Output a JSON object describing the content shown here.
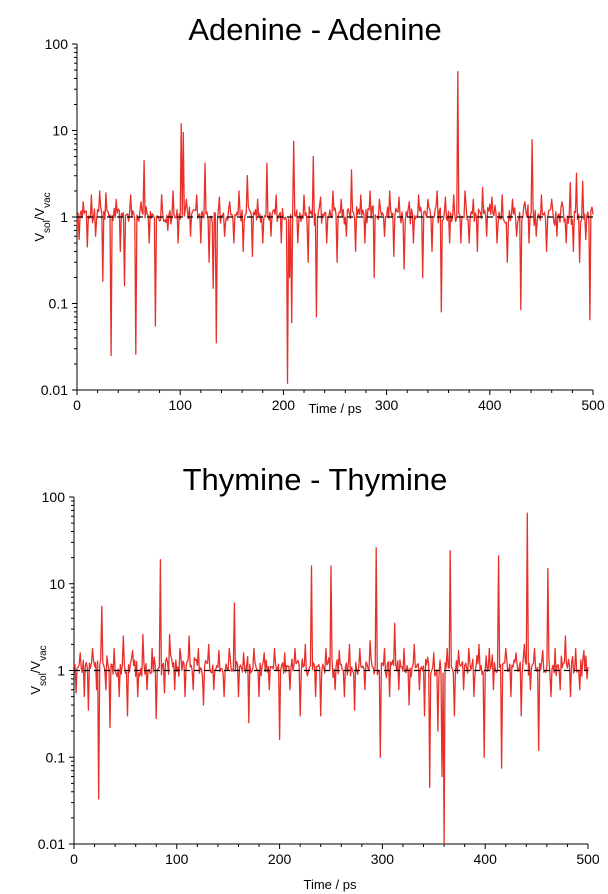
{
  "chart_data": [
    {
      "type": "line",
      "title": "Adenine - Adenine",
      "xlabel": "Time / ps",
      "ylabel": "V",
      "ylabel_sub1": "sol",
      "ylabel_slash": "/V",
      "ylabel_sub2": "vac",
      "xlim": [
        0,
        500
      ],
      "ylim": [
        0.01,
        100
      ],
      "yscale": "log",
      "x_ticks": [
        0,
        100,
        200,
        300,
        400,
        500
      ],
      "x_tick_labels": [
        "0",
        "100",
        "200",
        "300",
        "400",
        "500"
      ],
      "y_ticks": [
        0.01,
        0.1,
        1,
        10,
        100
      ],
      "y_tick_labels": [
        "0.01",
        "0.1",
        "1",
        "10",
        "100"
      ],
      "reference_line": {
        "y": 1,
        "style": "dashed",
        "color": "#000000"
      },
      "line_color": "#e8302a",
      "grid": false,
      "base_y": 1.05,
      "sample_step": 1,
      "noise_amplitude_log10": 0.13,
      "spikes": [
        {
          "x": 2,
          "y": 0.55
        },
        {
          "x": 6,
          "y": 1.5
        },
        {
          "x": 10,
          "y": 0.45
        },
        {
          "x": 14,
          "y": 1.8
        },
        {
          "x": 18,
          "y": 0.6
        },
        {
          "x": 22,
          "y": 2.0
        },
        {
          "x": 25,
          "y": 0.18
        },
        {
          "x": 28,
          "y": 1.9
        },
        {
          "x": 33,
          "y": 0.025
        },
        {
          "x": 38,
          "y": 1.6
        },
        {
          "x": 42,
          "y": 0.4
        },
        {
          "x": 46,
          "y": 0.16
        },
        {
          "x": 52,
          "y": 1.8
        },
        {
          "x": 57,
          "y": 0.026
        },
        {
          "x": 62,
          "y": 1.5
        },
        {
          "x": 65,
          "y": 4.5
        },
        {
          "x": 70,
          "y": 0.5
        },
        {
          "x": 76,
          "y": 0.055
        },
        {
          "x": 82,
          "y": 1.8
        },
        {
          "x": 88,
          "y": 0.7
        },
        {
          "x": 93,
          "y": 2.0
        },
        {
          "x": 98,
          "y": 0.5
        },
        {
          "x": 101,
          "y": 12.0
        },
        {
          "x": 103,
          "y": 9.5
        },
        {
          "x": 106,
          "y": 1.6
        },
        {
          "x": 110,
          "y": 0.6
        },
        {
          "x": 116,
          "y": 1.8
        },
        {
          "x": 120,
          "y": 0.5
        },
        {
          "x": 124,
          "y": 4.2
        },
        {
          "x": 128,
          "y": 0.3
        },
        {
          "x": 132,
          "y": 0.15
        },
        {
          "x": 135,
          "y": 0.035
        },
        {
          "x": 138,
          "y": 1.7
        },
        {
          "x": 143,
          "y": 0.6
        },
        {
          "x": 148,
          "y": 1.5
        },
        {
          "x": 152,
          "y": 0.5
        },
        {
          "x": 157,
          "y": 2.0
        },
        {
          "x": 161,
          "y": 0.4
        },
        {
          "x": 165,
          "y": 3.0
        },
        {
          "x": 170,
          "y": 0.35
        },
        {
          "x": 175,
          "y": 1.6
        },
        {
          "x": 180,
          "y": 0.5
        },
        {
          "x": 184,
          "y": 4.2
        },
        {
          "x": 188,
          "y": 0.6
        },
        {
          "x": 193,
          "y": 1.8
        },
        {
          "x": 198,
          "y": 0.5
        },
        {
          "x": 204,
          "y": 0.012
        },
        {
          "x": 206,
          "y": 0.2
        },
        {
          "x": 208,
          "y": 0.06
        },
        {
          "x": 210,
          "y": 7.5
        },
        {
          "x": 214,
          "y": 0.5
        },
        {
          "x": 220,
          "y": 1.8
        },
        {
          "x": 224,
          "y": 0.3
        },
        {
          "x": 229,
          "y": 5.0
        },
        {
          "x": 232,
          "y": 0.07
        },
        {
          "x": 236,
          "y": 1.7
        },
        {
          "x": 242,
          "y": 0.5
        },
        {
          "x": 248,
          "y": 2.0
        },
        {
          "x": 252,
          "y": 0.3
        },
        {
          "x": 256,
          "y": 1.6
        },
        {
          "x": 261,
          "y": 0.6
        },
        {
          "x": 266,
          "y": 3.5
        },
        {
          "x": 270,
          "y": 0.4
        },
        {
          "x": 275,
          "y": 1.8
        },
        {
          "x": 279,
          "y": 0.5
        },
        {
          "x": 284,
          "y": 2.0
        },
        {
          "x": 288,
          "y": 0.2
        },
        {
          "x": 293,
          "y": 1.6
        },
        {
          "x": 298,
          "y": 0.6
        },
        {
          "x": 303,
          "y": 2.0
        },
        {
          "x": 307,
          "y": 0.35
        },
        {
          "x": 312,
          "y": 1.7
        },
        {
          "x": 317,
          "y": 0.25
        },
        {
          "x": 322,
          "y": 1.5
        },
        {
          "x": 326,
          "y": 0.5
        },
        {
          "x": 331,
          "y": 1.8
        },
        {
          "x": 335,
          "y": 0.2
        },
        {
          "x": 340,
          "y": 1.6
        },
        {
          "x": 344,
          "y": 0.4
        },
        {
          "x": 349,
          "y": 2.0
        },
        {
          "x": 353,
          "y": 0.08
        },
        {
          "x": 357,
          "y": 1.7
        },
        {
          "x": 361,
          "y": 0.5
        },
        {
          "x": 365,
          "y": 1.8
        },
        {
          "x": 369,
          "y": 48.0
        },
        {
          "x": 372,
          "y": 0.5
        },
        {
          "x": 376,
          "y": 2.0
        },
        {
          "x": 380,
          "y": 0.5
        },
        {
          "x": 384,
          "y": 1.6
        },
        {
          "x": 388,
          "y": 0.4
        },
        {
          "x": 393,
          "y": 2.2
        },
        {
          "x": 397,
          "y": 0.6
        },
        {
          "x": 402,
          "y": 1.7
        },
        {
          "x": 407,
          "y": 0.5
        },
        {
          "x": 412,
          "y": 1.8
        },
        {
          "x": 417,
          "y": 0.3
        },
        {
          "x": 422,
          "y": 1.6
        },
        {
          "x": 426,
          "y": 0.6
        },
        {
          "x": 430,
          "y": 0.085
        },
        {
          "x": 434,
          "y": 1.5
        },
        {
          "x": 438,
          "y": 0.5
        },
        {
          "x": 441,
          "y": 7.8
        },
        {
          "x": 445,
          "y": 0.6
        },
        {
          "x": 450,
          "y": 1.8
        },
        {
          "x": 455,
          "y": 0.4
        },
        {
          "x": 460,
          "y": 1.6
        },
        {
          "x": 465,
          "y": 0.6
        },
        {
          "x": 470,
          "y": 1.5
        },
        {
          "x": 474,
          "y": 0.5
        },
        {
          "x": 478,
          "y": 2.5
        },
        {
          "x": 481,
          "y": 0.4
        },
        {
          "x": 484,
          "y": 3.2
        },
        {
          "x": 487,
          "y": 0.3
        },
        {
          "x": 490,
          "y": 2.6
        },
        {
          "x": 493,
          "y": 0.55
        },
        {
          "x": 497,
          "y": 0.065
        },
        {
          "x": 499,
          "y": 1.3
        }
      ]
    },
    {
      "type": "line",
      "title": "Thymine - Thymine",
      "xlabel": "Time / ps",
      "ylabel": "V",
      "ylabel_sub1": "sol",
      "ylabel_slash": "/V",
      "ylabel_sub2": "vac",
      "xlim": [
        0,
        500
      ],
      "ylim": [
        0.01,
        100
      ],
      "yscale": "log",
      "x_ticks": [
        0,
        100,
        200,
        300,
        400,
        500
      ],
      "x_tick_labels": [
        "0",
        "100",
        "200",
        "300",
        "400",
        "500"
      ],
      "y_ticks": [
        0.01,
        0.1,
        1,
        10,
        100
      ],
      "y_tick_labels": [
        "0.01",
        "0.1",
        "1",
        "10",
        "100"
      ],
      "reference_line": {
        "y": 1,
        "style": "dashed",
        "color": "#000000"
      },
      "line_color": "#e8302a",
      "grid": false,
      "base_y": 1.1,
      "sample_step": 1,
      "noise_amplitude_log10": 0.14,
      "spikes": [
        {
          "x": 2,
          "y": 0.55
        },
        {
          "x": 6,
          "y": 1.6
        },
        {
          "x": 10,
          "y": 0.5
        },
        {
          "x": 14,
          "y": 0.35
        },
        {
          "x": 18,
          "y": 1.8
        },
        {
          "x": 22,
          "y": 0.6
        },
        {
          "x": 24,
          "y": 0.033
        },
        {
          "x": 27,
          "y": 5.5
        },
        {
          "x": 31,
          "y": 0.6
        },
        {
          "x": 35,
          "y": 0.22
        },
        {
          "x": 39,
          "y": 1.8
        },
        {
          "x": 44,
          "y": 0.5
        },
        {
          "x": 48,
          "y": 2.5
        },
        {
          "x": 52,
          "y": 0.3
        },
        {
          "x": 57,
          "y": 1.7
        },
        {
          "x": 62,
          "y": 0.5
        },
        {
          "x": 67,
          "y": 2.6
        },
        {
          "x": 71,
          "y": 0.6
        },
        {
          "x": 76,
          "y": 1.8
        },
        {
          "x": 80,
          "y": 0.28
        },
        {
          "x": 84,
          "y": 19.0
        },
        {
          "x": 88,
          "y": 0.55
        },
        {
          "x": 93,
          "y": 2.6
        },
        {
          "x": 98,
          "y": 0.6
        },
        {
          "x": 103,
          "y": 1.8
        },
        {
          "x": 108,
          "y": 0.5
        },
        {
          "x": 112,
          "y": 2.5
        },
        {
          "x": 116,
          "y": 0.6
        },
        {
          "x": 121,
          "y": 1.8
        },
        {
          "x": 126,
          "y": 0.4
        },
        {
          "x": 131,
          "y": 2.0
        },
        {
          "x": 136,
          "y": 0.6
        },
        {
          "x": 141,
          "y": 1.7
        },
        {
          "x": 146,
          "y": 0.5
        },
        {
          "x": 151,
          "y": 1.8
        },
        {
          "x": 156,
          "y": 6.0
        },
        {
          "x": 160,
          "y": 0.5
        },
        {
          "x": 165,
          "y": 1.6
        },
        {
          "x": 170,
          "y": 0.25
        },
        {
          "x": 175,
          "y": 1.8
        },
        {
          "x": 180,
          "y": 0.5
        },
        {
          "x": 185,
          "y": 1.6
        },
        {
          "x": 190,
          "y": 0.6
        },
        {
          "x": 195,
          "y": 1.8
        },
        {
          "x": 200,
          "y": 0.16
        },
        {
          "x": 205,
          "y": 1.6
        },
        {
          "x": 210,
          "y": 0.6
        },
        {
          "x": 215,
          "y": 1.8
        },
        {
          "x": 220,
          "y": 0.3
        },
        {
          "x": 225,
          "y": 2.0
        },
        {
          "x": 231,
          "y": 16.0
        },
        {
          "x": 235,
          "y": 0.5
        },
        {
          "x": 240,
          "y": 0.3
        },
        {
          "x": 245,
          "y": 1.8
        },
        {
          "x": 250,
          "y": 16.0
        },
        {
          "x": 254,
          "y": 0.6
        },
        {
          "x": 258,
          "y": 1.7
        },
        {
          "x": 263,
          "y": 0.5
        },
        {
          "x": 268,
          "y": 2.0
        },
        {
          "x": 273,
          "y": 0.35
        },
        {
          "x": 278,
          "y": 1.8
        },
        {
          "x": 283,
          "y": 0.6
        },
        {
          "x": 288,
          "y": 2.2
        },
        {
          "x": 294,
          "y": 26.0
        },
        {
          "x": 298,
          "y": 0.1
        },
        {
          "x": 302,
          "y": 1.8
        },
        {
          "x": 307,
          "y": 0.5
        },
        {
          "x": 312,
          "y": 3.5
        },
        {
          "x": 316,
          "y": 0.6
        },
        {
          "x": 321,
          "y": 1.8
        },
        {
          "x": 326,
          "y": 0.4
        },
        {
          "x": 331,
          "y": 2.0
        },
        {
          "x": 336,
          "y": 0.6
        },
        {
          "x": 341,
          "y": 0.3
        },
        {
          "x": 346,
          "y": 0.045
        },
        {
          "x": 350,
          "y": 1.6
        },
        {
          "x": 354,
          "y": 0.2
        },
        {
          "x": 358,
          "y": 0.06
        },
        {
          "x": 360,
          "y": 0.01
        },
        {
          "x": 363,
          "y": 1.8
        },
        {
          "x": 366,
          "y": 24.0
        },
        {
          "x": 370,
          "y": 0.3
        },
        {
          "x": 374,
          "y": 1.7
        },
        {
          "x": 379,
          "y": 0.6
        },
        {
          "x": 384,
          "y": 1.8
        },
        {
          "x": 389,
          "y": 0.5
        },
        {
          "x": 394,
          "y": 2.0
        },
        {
          "x": 399,
          "y": 0.1
        },
        {
          "x": 404,
          "y": 1.8
        },
        {
          "x": 408,
          "y": 0.6
        },
        {
          "x": 413,
          "y": 21.0
        },
        {
          "x": 416,
          "y": 0.075
        },
        {
          "x": 420,
          "y": 1.8
        },
        {
          "x": 425,
          "y": 0.5
        },
        {
          "x": 430,
          "y": 1.6
        },
        {
          "x": 435,
          "y": 0.3
        },
        {
          "x": 438,
          "y": 2.0
        },
        {
          "x": 441,
          "y": 65.0
        },
        {
          "x": 444,
          "y": 0.6
        },
        {
          "x": 448,
          "y": 1.8
        },
        {
          "x": 452,
          "y": 0.12
        },
        {
          "x": 456,
          "y": 1.7
        },
        {
          "x": 461,
          "y": 15.0
        },
        {
          "x": 464,
          "y": 0.5
        },
        {
          "x": 468,
          "y": 1.8
        },
        {
          "x": 473,
          "y": 0.6
        },
        {
          "x": 478,
          "y": 2.5
        },
        {
          "x": 483,
          "y": 0.5
        },
        {
          "x": 488,
          "y": 1.8
        },
        {
          "x": 492,
          "y": 0.6
        },
        {
          "x": 496,
          "y": 1.7
        },
        {
          "x": 499,
          "y": 0.8
        }
      ]
    }
  ]
}
